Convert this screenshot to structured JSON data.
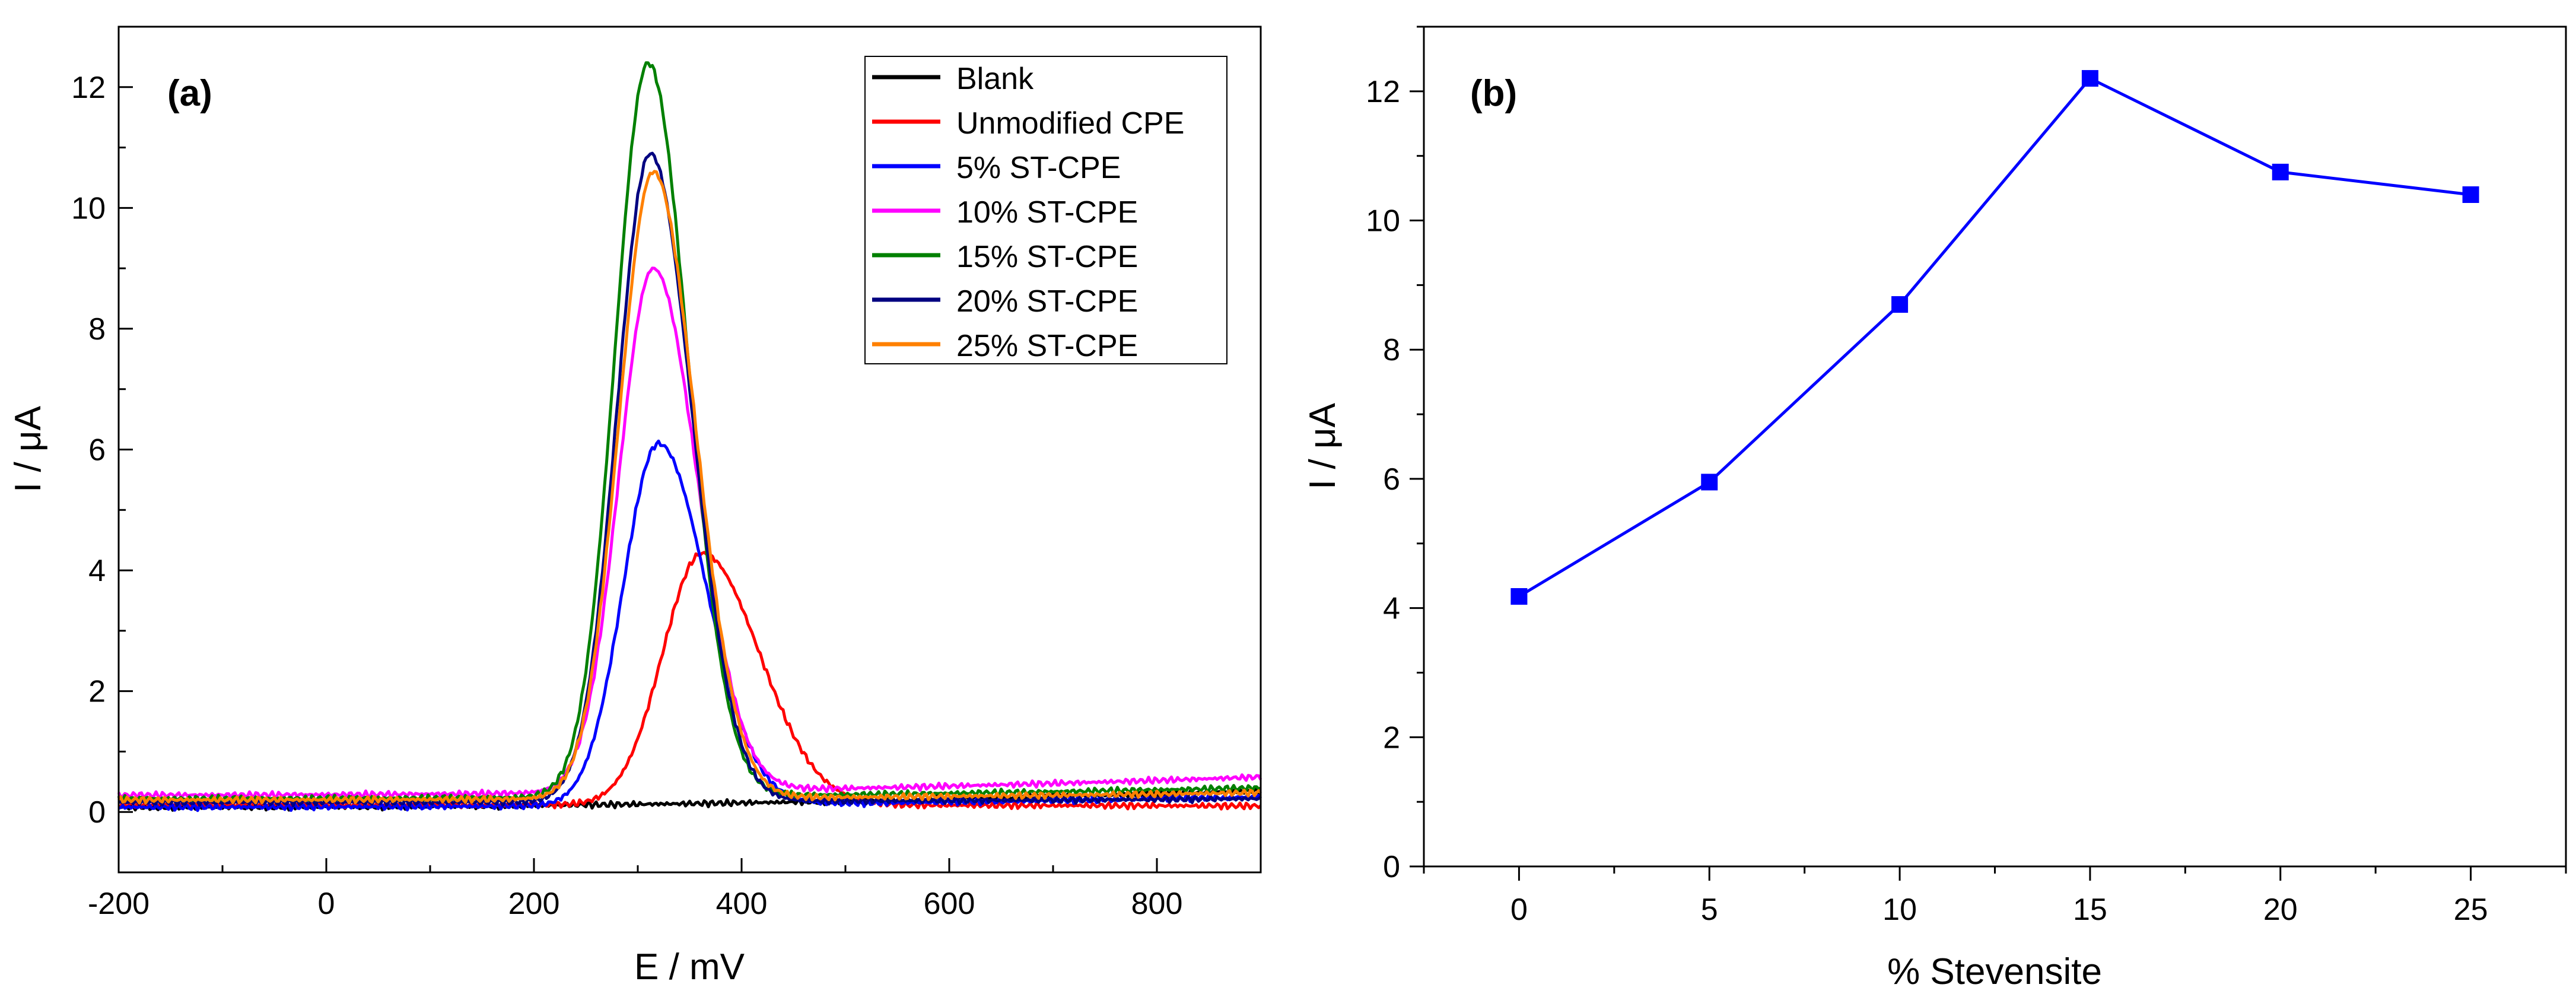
{
  "chart_data": [
    {
      "panel_label": "(a)",
      "type": "line",
      "xlabel": "E / mV",
      "ylabel": "I / μA",
      "xlim": [
        -200,
        900
      ],
      "ylim": [
        -1,
        13
      ],
      "xticks": [
        "-200",
        "0",
        "200",
        "400",
        "600",
        "800"
      ],
      "yticks": [
        "0",
        "2",
        "4",
        "6",
        "8",
        "10",
        "12"
      ],
      "legend_position": "top-right",
      "series": [
        {
          "name": "Blank",
          "color": "#000000",
          "shape": {
            "type": "flat",
            "start": 0.08,
            "end": 0.35
          }
        },
        {
          "name": "Unmodified CPE",
          "color": "#ff0000",
          "shape": {
            "type": "peak",
            "peak_x": 362,
            "peak_y": 4.28,
            "sigma_left": 38,
            "sigma_right": 55,
            "start": 0.12,
            "end": 0.1
          }
        },
        {
          "name": "5% ST-CPE",
          "color": "#0000ff",
          "shape": {
            "type": "peak",
            "peak_x": 320,
            "peak_y": 6.1,
            "sigma_left": 34,
            "sigma_right": 46,
            "start": 0.08,
            "end": 0.25
          }
        },
        {
          "name": "10% ST-CPE",
          "color": "#ff00ff",
          "shape": {
            "type": "peak",
            "peak_x": 315,
            "peak_y": 9.0,
            "sigma_left": 33,
            "sigma_right": 42,
            "start": 0.28,
            "end": 0.58
          }
        },
        {
          "name": "15% ST-CPE",
          "color": "#008000",
          "shape": {
            "type": "peak",
            "peak_x": 310,
            "peak_y": 12.4,
            "sigma_left": 32,
            "sigma_right": 38,
            "start": 0.22,
            "end": 0.4
          }
        },
        {
          "name": "20% ST-CPE",
          "color": "#000080",
          "shape": {
            "type": "peak",
            "peak_x": 312,
            "peak_y": 10.9,
            "sigma_left": 32,
            "sigma_right": 40,
            "start": 0.16,
            "end": 0.22
          }
        },
        {
          "name": "25% ST-CPE",
          "color": "#ff8000",
          "shape": {
            "type": "peak",
            "peak_x": 315,
            "peak_y": 10.6,
            "sigma_left": 33,
            "sigma_right": 40,
            "start": 0.2,
            "end": 0.32
          }
        }
      ]
    },
    {
      "panel_label": "(b)",
      "type": "line",
      "marker": "square",
      "color": "#0000ff",
      "xlabel": "% Stevensite",
      "ylabel": "I / μA",
      "xlim": [
        -2.5,
        27.5
      ],
      "ylim": [
        0,
        13
      ],
      "xticks": [
        "0",
        "5",
        "10",
        "15",
        "20",
        "25"
      ],
      "yticks": [
        "0",
        "2",
        "4",
        "6",
        "8",
        "10",
        "12"
      ],
      "x": [
        0,
        5,
        10,
        15,
        20,
        25
      ],
      "y": [
        4.18,
        5.95,
        8.7,
        12.2,
        10.75,
        10.4
      ]
    }
  ]
}
